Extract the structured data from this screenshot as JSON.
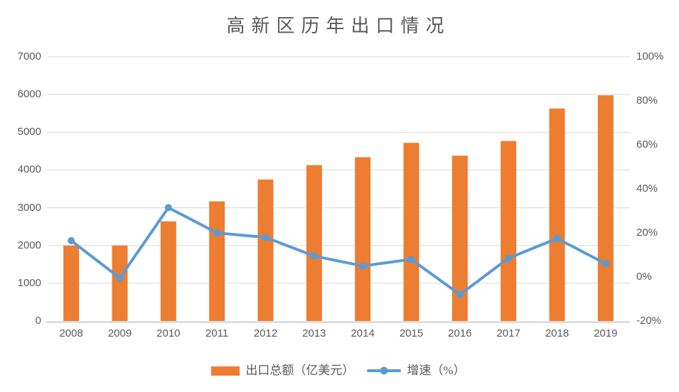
{
  "title": "高新区历年出口情况",
  "colors": {
    "bar": "#ED7D31",
    "line": "#5B9BD5",
    "gridline": "#D9D9D9",
    "axis_line": "#D9D9D9",
    "text": "#595959",
    "background": "#FFFFFF"
  },
  "chart_data": {
    "type": "bar+line combo",
    "title": "高新区历年出口情况",
    "categories": [
      "2008",
      "2009",
      "2010",
      "2011",
      "2012",
      "2013",
      "2014",
      "2015",
      "2016",
      "2017",
      "2018",
      "2019"
    ],
    "series": [
      {
        "name": "出口总额（亿美元）",
        "type": "bar",
        "axis": "left",
        "values": [
          2000,
          2000,
          2640,
          3170,
          3750,
          4130,
          4340,
          4720,
          4380,
          4770,
          5630,
          5980
        ]
      },
      {
        "name": "增速（%）",
        "type": "line",
        "axis": "right",
        "values": [
          16.5,
          -0.5,
          31.5,
          20,
          18,
          9.5,
          5,
          8,
          -8,
          8.5,
          17.5,
          6
        ]
      }
    ],
    "left_axis": {
      "min": 0,
      "max": 7000,
      "step": 1000,
      "tick_labels": [
        "0",
        "1000",
        "2000",
        "3000",
        "4000",
        "5000",
        "6000",
        "7000"
      ]
    },
    "right_axis": {
      "min": -20,
      "max": 100,
      "step": 20,
      "tick_labels": [
        "-20%",
        "0%",
        "20%",
        "40%",
        "60%",
        "80%",
        "100%"
      ]
    },
    "grid": true,
    "legend_position": "bottom"
  }
}
